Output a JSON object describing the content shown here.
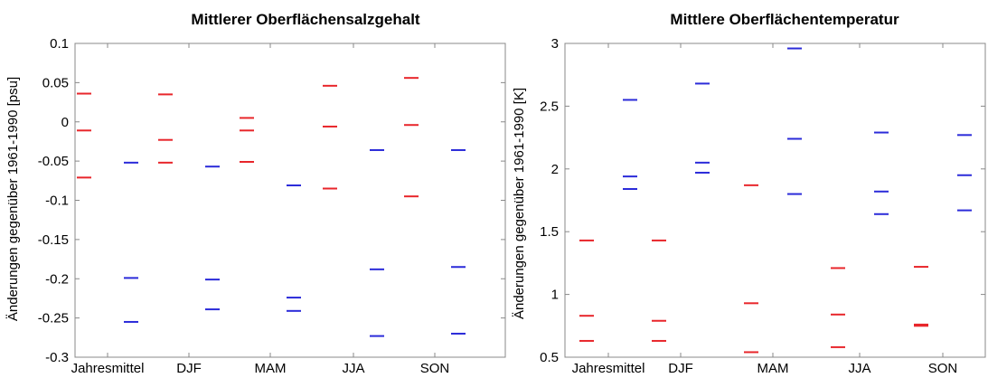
{
  "chart_data": [
    {
      "type": "scatter",
      "title": "Mittlerer Oberflächensalzgehalt",
      "ylabel": "Änderungen gegenüber 1961-1990 [psu]",
      "xlabel": "",
      "categories": [
        "Jahresmittel",
        "DJF",
        "MAM",
        "JJA",
        "SON"
      ],
      "ylim": [
        -0.3,
        0.1
      ],
      "yticks": [
        "0.1",
        "0.05",
        "0",
        "-0.05",
        "-0.1",
        "-0.15",
        "-0.2",
        "-0.25",
        "-0.3"
      ],
      "ytick_values": [
        0.1,
        0.05,
        0,
        -0.05,
        -0.1,
        -0.15,
        -0.2,
        -0.25,
        -0.3
      ],
      "grid": false,
      "series": [
        {
          "color": "#e8262b",
          "values": [
            [
              0.036,
              -0.011,
              -0.071
            ],
            [
              0.035,
              -0.023,
              -0.052
            ],
            [
              0.005,
              -0.011,
              -0.051
            ],
            [
              0.046,
              -0.006,
              -0.085
            ],
            [
              0.056,
              -0.004,
              -0.095
            ]
          ]
        },
        {
          "color": "#2b2bd9",
          "values": [
            [
              -0.052,
              -0.199,
              -0.255
            ],
            [
              -0.057,
              -0.201,
              -0.239
            ],
            [
              -0.081,
              -0.224,
              -0.241
            ],
            [
              -0.036,
              -0.188,
              -0.273
            ],
            [
              -0.036,
              -0.185,
              -0.27
            ]
          ]
        }
      ]
    },
    {
      "type": "scatter",
      "title": "Mittlere Oberflächentemperatur",
      "ylabel": "Änderungen gegenüber 1961-1990 [K]",
      "xlabel": "",
      "categories": [
        "Jahresmittel",
        "DJF",
        "MAM",
        "JJA",
        "SON"
      ],
      "ylim": [
        0.5,
        3
      ],
      "yticks": [
        "3",
        "2.5",
        "2",
        "1.5",
        "1",
        "0.5"
      ],
      "ytick_values": [
        3,
        2.5,
        2,
        1.5,
        1,
        0.5
      ],
      "grid": false,
      "series": [
        {
          "color": "#e8262b",
          "values": [
            [
              1.43,
              0.83,
              0.63
            ],
            [
              1.43,
              0.79,
              0.63
            ],
            [
              1.87,
              0.93,
              0.54
            ],
            [
              1.21,
              0.84,
              0.58
            ],
            [
              1.22,
              0.76,
              0.75
            ]
          ]
        },
        {
          "color": "#2b2bd9",
          "values": [
            [
              2.55,
              1.94,
              1.84
            ],
            [
              2.68,
              2.05,
              1.97
            ],
            [
              2.96,
              2.24,
              1.8
            ],
            [
              2.29,
              1.82,
              1.64
            ],
            [
              2.27,
              1.95,
              1.67
            ]
          ]
        }
      ]
    }
  ]
}
